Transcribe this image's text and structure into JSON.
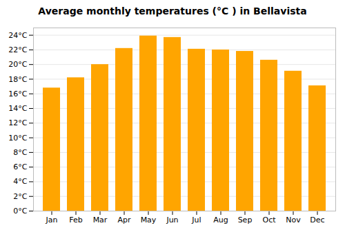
{
  "chart_data": {
    "type": "bar",
    "title": "Average monthly temperatures (°C ) in Bellavista",
    "categories": [
      "Jan",
      "Feb",
      "Mar",
      "Apr",
      "May",
      "Jun",
      "Jul",
      "Aug",
      "Sep",
      "Oct",
      "Nov",
      "Dec"
    ],
    "values": [
      16.8,
      18.2,
      20.0,
      22.2,
      23.9,
      23.7,
      22.1,
      22.0,
      21.8,
      20.6,
      19.1,
      17.1
    ],
    "color": "#FFA500",
    "ylim": [
      0,
      25
    ],
    "yticks": [
      {
        "value": 0,
        "label": "0°C"
      },
      {
        "value": 2,
        "label": "2°C"
      },
      {
        "value": 4,
        "label": "4°C"
      },
      {
        "value": 6,
        "label": "6°C"
      },
      {
        "value": 8,
        "label": "8°C"
      },
      {
        "value": 10,
        "label": "10°C"
      },
      {
        "value": 12,
        "label": "12°C"
      },
      {
        "value": 14,
        "label": "14°C"
      },
      {
        "value": 16,
        "label": "16°C"
      },
      {
        "value": 18,
        "label": "18°C"
      },
      {
        "value": 20,
        "label": "20°C"
      },
      {
        "value": 22,
        "label": "22°C"
      },
      {
        "value": 24,
        "label": "24°C"
      }
    ],
    "grid": true
  }
}
